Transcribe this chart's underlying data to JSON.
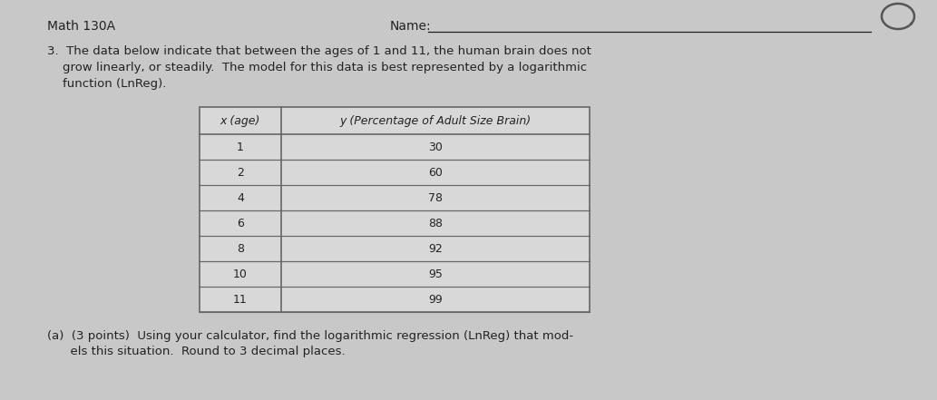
{
  "bg_color": "#c8c8c8",
  "header_left": "Math 130A",
  "header_right": "Name:",
  "problem_text_line1": "3.  The data below indicate that between the ages of 1 and 11, the human brain does not",
  "problem_text_line2": "    grow linearly, or steadily.  The model for this data is best represented by a logarithmic",
  "problem_text_line3": "    function (LnReg).",
  "table_col1_header": "x (age)",
  "table_col2_header": "y (Percentage of Adult Size Brain)",
  "table_data": [
    [
      1,
      30
    ],
    [
      2,
      60
    ],
    [
      4,
      78
    ],
    [
      6,
      88
    ],
    [
      8,
      92
    ],
    [
      10,
      95
    ],
    [
      11,
      99
    ]
  ],
  "part_a_line1": "(a)  (3 points)  Using your calculator, find the logarithmic regression (LnReg) that mod-",
  "part_a_line2": "      els this situation.  Round to 3 decimal places.",
  "font_size_header": 10,
  "font_size_body": 9.5,
  "font_size_table": 9,
  "text_color": "#222222",
  "table_border_color": "#666666",
  "table_fill_color": "#d8d8d8"
}
